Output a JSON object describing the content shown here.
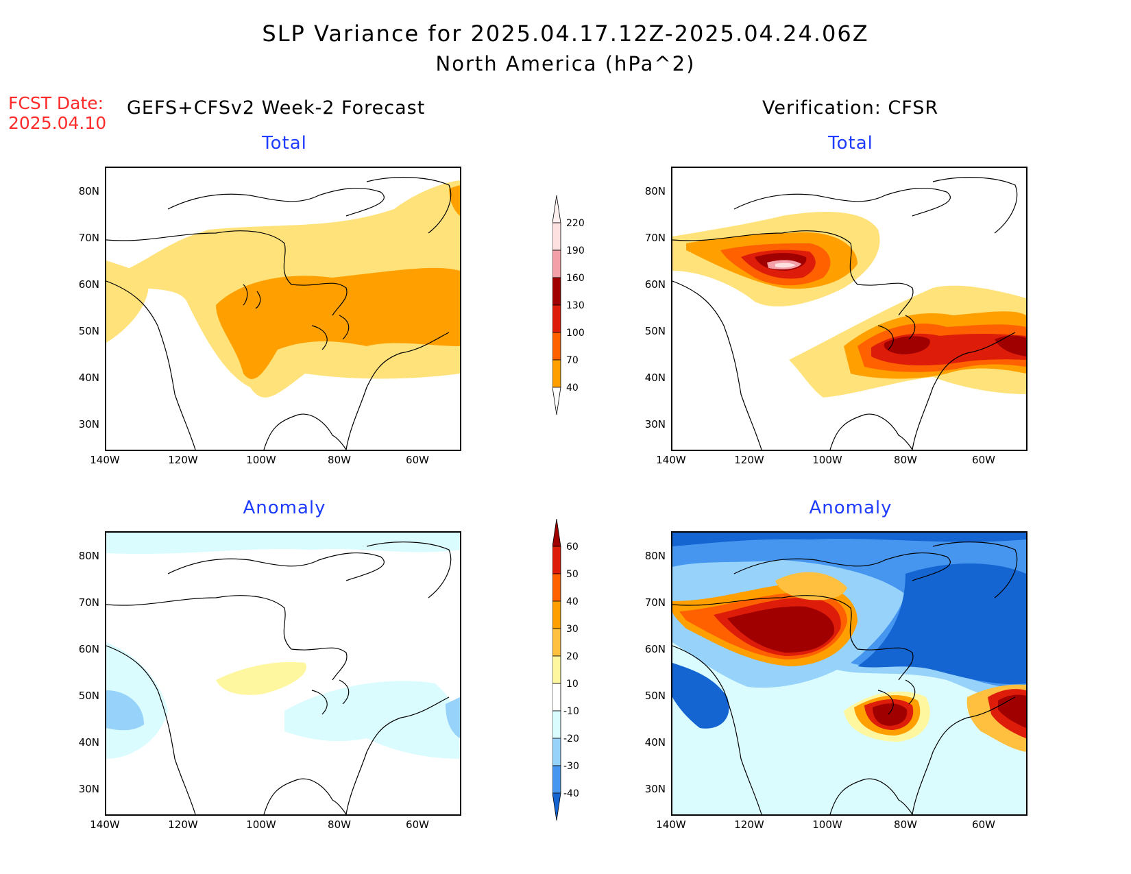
{
  "header": {
    "title": "SLP Variance for 2025.04.17.12Z-2025.04.24.06Z",
    "subtitle": "North America (hPa^2)",
    "fcst_label": "FCST Date:",
    "fcst_date": "2025.04.10",
    "left_column": "GEFS+CFSv2 Week-2 Forecast",
    "right_column": "Verification: CFSR"
  },
  "panels": {
    "fcst_total": {
      "title": "Total"
    },
    "fcst_anomaly": {
      "title": "Anomaly"
    },
    "verif_total": {
      "title": "Total"
    },
    "verif_anomaly": {
      "title": "Anomaly"
    }
  },
  "axes": {
    "lat_labels": [
      "80N",
      "70N",
      "60N",
      "50N",
      "40N",
      "30N"
    ],
    "lon_labels": [
      "140W",
      "120W",
      "100W",
      "80W",
      "60W"
    ]
  },
  "colorbars": {
    "total": {
      "levels": [
        "220",
        "190",
        "160",
        "130",
        "100",
        "70",
        "40"
      ],
      "colors": [
        "#fde0e0",
        "#f4a0a8",
        "#a00000",
        "#dd1c0a",
        "#ff6000",
        "#ffa000",
        "#ffe27a"
      ]
    },
    "anomaly": {
      "levels": [
        "60",
        "50",
        "40",
        "30",
        "20",
        "10",
        "-10",
        "-20",
        "-30",
        "-40"
      ],
      "colors": [
        "#a00000",
        "#dd1c0a",
        "#ff6000",
        "#ffa000",
        "#ffc040",
        "#fff7a0",
        "#ffffff",
        "#dafcff",
        "#96d2fa",
        "#4696f0",
        "#1464d2"
      ]
    }
  },
  "colors": {
    "title_blue": "#1e3cff",
    "fcst_red": "#ff2a2a"
  }
}
